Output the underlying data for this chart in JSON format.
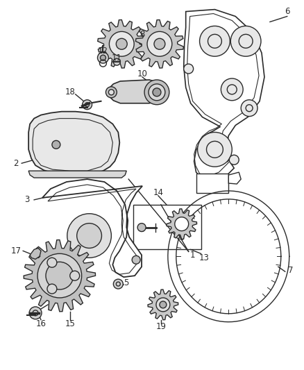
{
  "bg_color": "#ffffff",
  "line_color": "#2a2a2a",
  "label_color": "#2a2a2a",
  "figsize": [
    4.38,
    5.33
  ],
  "dpi": 100,
  "font_size": 8.5,
  "lw": 1.0
}
